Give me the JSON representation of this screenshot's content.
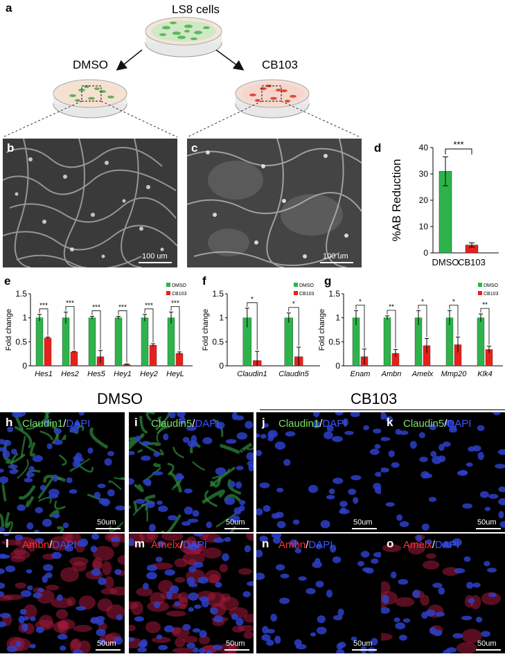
{
  "panel_a": {
    "label": "a",
    "top_dish": "LS8 cells",
    "left_dish": "DMSO",
    "right_dish": "CB103"
  },
  "panel_b": {
    "label": "b",
    "scale": "100 um"
  },
  "panel_c": {
    "label": "c",
    "scale": "100 um"
  },
  "chart_data": [
    {
      "id": "d",
      "type": "bar",
      "label": "d",
      "categories": [
        "DMSO",
        "CB103"
      ],
      "values": [
        31,
        3
      ],
      "errors": [
        5.5,
        0.8
      ],
      "ylabel": "%AB Reduction",
      "ylim": [
        0,
        40
      ],
      "yticks": [
        "0",
        "10",
        "20",
        "30",
        "40"
      ],
      "significance": [
        "***"
      ],
      "colors": {
        "DMSO": "#2db34a",
        "CB103": "#e8201b"
      }
    },
    {
      "id": "e",
      "type": "bar",
      "label": "e",
      "categories": [
        "Hes1",
        "Hes2",
        "Hes5",
        "Hey1",
        "Hey2",
        "HeyL"
      ],
      "series": [
        {
          "name": "DMSO",
          "values": [
            1.0,
            1.0,
            1.0,
            1.0,
            1.0,
            1.0
          ],
          "errors": [
            0.07,
            0.12,
            0.03,
            0.03,
            0.07,
            0.12
          ]
        },
        {
          "name": "CB103",
          "values": [
            0.58,
            0.29,
            0.19,
            0.03,
            0.43,
            0.26
          ],
          "errors": [
            0.02,
            0.01,
            0.13,
            0.01,
            0.03,
            0.03
          ]
        }
      ],
      "ylabel": "Fold change",
      "ylim": [
        0,
        1.5
      ],
      "yticks": [
        "0",
        "0.5",
        "1",
        "1.5"
      ],
      "significance": [
        "***",
        "***",
        "***",
        "***",
        "***",
        "***"
      ]
    },
    {
      "id": "f",
      "type": "bar",
      "label": "f",
      "categories": [
        "Claudin1",
        "Claudin5"
      ],
      "series": [
        {
          "name": "DMSO",
          "values": [
            1.0,
            1.0
          ],
          "errors": [
            0.2,
            0.1
          ]
        },
        {
          "name": "CB103",
          "values": [
            0.11,
            0.19
          ],
          "errors": [
            0.19,
            0.2
          ]
        }
      ],
      "ylabel": "Fold change",
      "ylim": [
        0,
        1.5
      ],
      "yticks": [
        "0",
        "0.5",
        "1",
        "1.5"
      ],
      "significance": [
        "*",
        "*"
      ]
    },
    {
      "id": "g",
      "type": "bar",
      "label": "g",
      "categories": [
        "Enam",
        "Ambn",
        "Amelx",
        "Mmp20",
        "Klk4"
      ],
      "series": [
        {
          "name": "DMSO",
          "values": [
            1.0,
            1.0,
            1.0,
            1.0,
            1.0
          ],
          "errors": [
            0.15,
            0.04,
            0.15,
            0.15,
            0.08
          ]
        },
        {
          "name": "CB103",
          "values": [
            0.19,
            0.26,
            0.42,
            0.44,
            0.34
          ],
          "errors": [
            0.16,
            0.08,
            0.15,
            0.16,
            0.07
          ]
        }
      ],
      "ylabel": "Fold change",
      "ylim": [
        0,
        1.5
      ],
      "yticks": [
        "0",
        "0.5",
        "1",
        "1.5"
      ],
      "significance": [
        "*",
        "**",
        "*",
        "*",
        "**"
      ]
    }
  ],
  "legend": {
    "dmso": "DMSO",
    "cb103": "CB103",
    "dmso_color": "#2db34a",
    "cb103_color": "#e8201b"
  },
  "group_headers": {
    "left": "DMSO",
    "right": "CB103"
  },
  "slash": "/",
  "fluor_panels": [
    {
      "label": "h",
      "marker": "Claudin1",
      "stain": "DAPI",
      "scale": "50um",
      "type": "green"
    },
    {
      "label": "i",
      "marker": "Claudin5",
      "stain": "DAPI",
      "scale": "50um",
      "type": "green"
    },
    {
      "label": "j",
      "marker": "Claudin1",
      "stain": "DAPI",
      "scale": "50um",
      "type": "blue"
    },
    {
      "label": "k",
      "marker": "Claudin5",
      "stain": "DAPI",
      "scale": "50um",
      "type": "blue"
    },
    {
      "label": "l",
      "marker": "Ambn",
      "stain": "DAPI",
      "scale": "50um",
      "type": "red"
    },
    {
      "label": "m",
      "marker": "Amelx",
      "stain": "DAPI",
      "scale": "50um",
      "type": "red"
    },
    {
      "label": "n",
      "marker": "Ambn",
      "stain": "DAPI",
      "scale": "50um",
      "type": "blue"
    },
    {
      "label": "o",
      "marker": "Amelx",
      "stain": "DAPI",
      "scale": "50um",
      "type": "redsparse"
    }
  ]
}
